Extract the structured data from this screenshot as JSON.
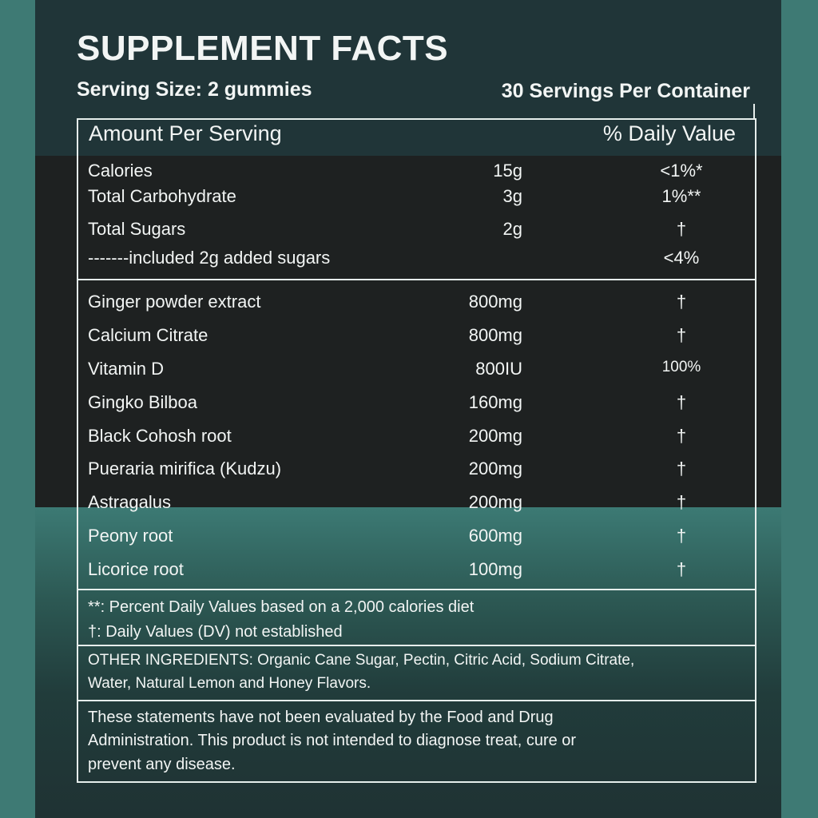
{
  "colors": {
    "outer": "#3e7a74",
    "panel_top": "#203538",
    "panel_mid": "#1e2121",
    "panel_bottom": "#2c5853",
    "text": "#f2f5f4"
  },
  "title": "SUPPLEMENT FACTS",
  "serving_size": "Serving Size: 2 gummies",
  "servings_per_container": "30 Servings Per Container",
  "header": {
    "amount": "Amount Per Serving",
    "daily_value": "% Daily Value"
  },
  "nutrition": [
    {
      "name": "Calories",
      "amount": "15g",
      "dv": "<1%*"
    },
    {
      "name": "Total Carbohydrate",
      "amount": "3g",
      "dv": "1%**"
    },
    {
      "name": "Total Sugars",
      "amount": "2g",
      "dv": "†"
    },
    {
      "name": "-------included 2g added sugars",
      "amount": "",
      "dv": "<4%"
    }
  ],
  "ingredients": [
    {
      "name": "Ginger powder extract",
      "amount": "800mg",
      "dv": "†"
    },
    {
      "name": "Calcium Citrate",
      "amount": "800mg",
      "dv": "†"
    },
    {
      "name": "Vitamin D",
      "amount": "800IU",
      "dv": "100%"
    },
    {
      "name": "Gingko Bilboa",
      "amount": "160mg",
      "dv": "†"
    },
    {
      "name": "Black Cohosh root",
      "amount": "200mg",
      "dv": "†"
    },
    {
      "name": "Pueraria mirifica (Kudzu)",
      "amount": "200mg",
      "dv": "†"
    },
    {
      "name": "Astragalus",
      "amount": "200mg",
      "dv": "†"
    },
    {
      "name": "Peony root",
      "amount": "600mg",
      "dv": "†"
    },
    {
      "name": "Licorice root",
      "amount": "100mg",
      "dv": "†"
    }
  ],
  "footnotes": [
    "**: Percent Daily Values based on a 2,000 calories diet",
    "†: Daily Values (DV) not established"
  ],
  "other_ingredients": [
    "OTHER INGREDIENTS: Organic Cane Sugar, Pectin, Citric Acid, Sodium Citrate,",
    "Water, Natural Lemon and Honey Flavors."
  ],
  "disclaimer": [
    "These statements have not been evaluated by the Food and Drug",
    "Administration. This product is not intended to diagnose treat, cure or",
    "prevent any disease."
  ]
}
